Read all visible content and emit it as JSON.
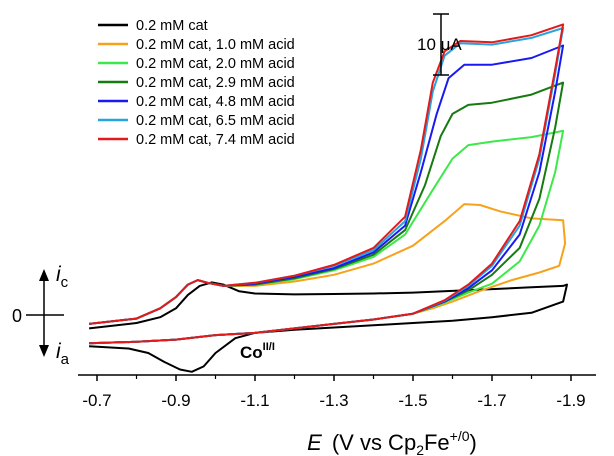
{
  "chart_data": {
    "type": "line",
    "title": "",
    "xlabel_parts": {
      "var": "E",
      "open": "(V vs Cp",
      "sub": "2",
      "mid": "Fe",
      "sup": "+/0",
      "close": ")"
    },
    "x_ticks": [
      "-0.7",
      "-0.9",
      "-1.1",
      "-1.3",
      "-1.5",
      "-1.7",
      "-1.9"
    ],
    "x_tick_values": [
      -0.7,
      -0.9,
      -1.1,
      -1.3,
      -1.5,
      -1.7,
      -1.9
    ],
    "xlim": [
      -0.68,
      -1.9
    ],
    "ylim": [
      -18,
      65
    ],
    "y_zero_label": "0",
    "scale_bar": {
      "value": 10,
      "unit": "μA",
      "label": "10 μA"
    },
    "y_arrows": {
      "upper": "i",
      "upper_sub": "c",
      "lower": "i",
      "lower_sub": "a"
    },
    "annotation": {
      "main": "Co",
      "sup": "II/I"
    },
    "legend_position": "top-left",
    "series": [
      {
        "name": "0.2 mM cat",
        "color": "#000000",
        "forward": [
          [
            -0.68,
            -3
          ],
          [
            -0.8,
            -1.8
          ],
          [
            -0.86,
            -0.5
          ],
          [
            -0.9,
            1.5
          ],
          [
            -0.93,
            4.5
          ],
          [
            -0.96,
            6.5
          ],
          [
            -0.99,
            7.3
          ],
          [
            -1.02,
            6.8
          ],
          [
            -1.06,
            5.3
          ],
          [
            -1.1,
            4.8
          ],
          [
            -1.2,
            4.6
          ],
          [
            -1.3,
            4.7
          ],
          [
            -1.4,
            4.8
          ],
          [
            -1.5,
            5.0
          ],
          [
            -1.6,
            5.4
          ],
          [
            -1.7,
            5.8
          ],
          [
            -1.8,
            6.2
          ],
          [
            -1.88,
            6.5
          ],
          [
            -1.89,
            6.8
          ]
        ],
        "reverse": [
          [
            -1.89,
            6.8
          ],
          [
            -1.88,
            3
          ],
          [
            -1.8,
            0.5
          ],
          [
            -1.7,
            -0.5
          ],
          [
            -1.6,
            -1.3
          ],
          [
            -1.5,
            -1.8
          ],
          [
            -1.4,
            -2.3
          ],
          [
            -1.3,
            -2.8
          ],
          [
            -1.2,
            -3.3
          ],
          [
            -1.1,
            -4.0
          ],
          [
            -1.05,
            -5.2
          ],
          [
            -1.0,
            -8.5
          ],
          [
            -0.97,
            -11.5
          ],
          [
            -0.94,
            -12.7
          ],
          [
            -0.91,
            -12.2
          ],
          [
            -0.87,
            -10.5
          ],
          [
            -0.83,
            -8.5
          ],
          [
            -0.78,
            -7.5
          ],
          [
            -0.68,
            -7.0
          ]
        ]
      },
      {
        "name": "0.2 mM cat, 1.0 mM acid",
        "color": "#f7a21b",
        "forward": [
          [
            -0.68,
            -2
          ],
          [
            -0.8,
            -0.8
          ],
          [
            -0.86,
            1.5
          ],
          [
            -0.9,
            4
          ],
          [
            -0.93,
            6.8
          ],
          [
            -0.955,
            7.8
          ],
          [
            -0.98,
            7.2
          ],
          [
            -1.02,
            6.5
          ],
          [
            -1.1,
            6.5
          ],
          [
            -1.2,
            7.5
          ],
          [
            -1.3,
            9
          ],
          [
            -1.4,
            11.5
          ],
          [
            -1.5,
            15.5
          ],
          [
            -1.58,
            21
          ],
          [
            -1.63,
            24.8
          ],
          [
            -1.67,
            24.6
          ],
          [
            -1.72,
            23.2
          ],
          [
            -1.8,
            21.6
          ],
          [
            -1.88,
            21.2
          ],
          [
            -1.885,
            16
          ]
        ],
        "reverse": [
          [
            -1.885,
            16
          ],
          [
            -1.87,
            11
          ],
          [
            -1.82,
            9.5
          ],
          [
            -1.75,
            7.8
          ],
          [
            -1.67,
            5.4
          ],
          [
            -1.6,
            3
          ],
          [
            -1.55,
            1.5
          ],
          [
            -1.5,
            0.3
          ],
          [
            -1.4,
            -1.0
          ],
          [
            -1.3,
            -2.0
          ],
          [
            -1.2,
            -3.0
          ],
          [
            -1.1,
            -4.0
          ],
          [
            -1.0,
            -4.5
          ],
          [
            -0.9,
            -5.5
          ],
          [
            -0.8,
            -6.0
          ],
          [
            -0.68,
            -6.3
          ]
        ]
      },
      {
        "name": "0.2 mM cat, 2.0 mM acid",
        "color": "#3de84a",
        "forward": [
          [
            -0.68,
            -2
          ],
          [
            -0.8,
            -0.8
          ],
          [
            -0.86,
            1.5
          ],
          [
            -0.9,
            4
          ],
          [
            -0.93,
            6.8
          ],
          [
            -0.955,
            7.8
          ],
          [
            -0.98,
            7.2
          ],
          [
            -1.02,
            6.5
          ],
          [
            -1.1,
            6.8
          ],
          [
            -1.2,
            8
          ],
          [
            -1.3,
            10
          ],
          [
            -1.4,
            13
          ],
          [
            -1.48,
            18
          ],
          [
            -1.55,
            28
          ],
          [
            -1.6,
            35
          ],
          [
            -1.64,
            38
          ],
          [
            -1.7,
            38.8
          ],
          [
            -1.8,
            39.8
          ],
          [
            -1.88,
            41.2
          ]
        ],
        "reverse": [
          [
            -1.88,
            41.2
          ],
          [
            -1.86,
            32
          ],
          [
            -1.82,
            20
          ],
          [
            -1.77,
            12
          ],
          [
            -1.7,
            7
          ],
          [
            -1.64,
            5
          ],
          [
            -1.58,
            2.8
          ],
          [
            -1.5,
            0.3
          ],
          [
            -1.4,
            -1.0
          ],
          [
            -1.3,
            -2.0
          ],
          [
            -1.2,
            -3.0
          ],
          [
            -1.1,
            -4.0
          ],
          [
            -1.0,
            -4.5
          ],
          [
            -0.9,
            -5.5
          ],
          [
            -0.8,
            -6.0
          ],
          [
            -0.68,
            -6.3
          ]
        ]
      },
      {
        "name": "0.2 mM cat, 2.9 mM acid",
        "color": "#157a10",
        "forward": [
          [
            -0.68,
            -2
          ],
          [
            -0.8,
            -0.8
          ],
          [
            -0.86,
            1.5
          ],
          [
            -0.9,
            4
          ],
          [
            -0.93,
            6.8
          ],
          [
            -0.955,
            7.8
          ],
          [
            -0.98,
            7.2
          ],
          [
            -1.02,
            6.5
          ],
          [
            -1.1,
            6.8
          ],
          [
            -1.2,
            8.2
          ],
          [
            -1.3,
            10.3
          ],
          [
            -1.4,
            13.5
          ],
          [
            -1.48,
            19
          ],
          [
            -1.53,
            29
          ],
          [
            -1.57,
            40
          ],
          [
            -1.6,
            45
          ],
          [
            -1.64,
            47
          ],
          [
            -1.7,
            47.5
          ],
          [
            -1.8,
            49.3
          ],
          [
            -1.88,
            52
          ]
        ],
        "reverse": [
          [
            -1.88,
            52
          ],
          [
            -1.86,
            42
          ],
          [
            -1.82,
            26
          ],
          [
            -1.77,
            15
          ],
          [
            -1.7,
            9
          ],
          [
            -1.64,
            5.5
          ],
          [
            -1.58,
            3
          ],
          [
            -1.5,
            0.3
          ],
          [
            -1.4,
            -1.0
          ],
          [
            -1.3,
            -2.0
          ],
          [
            -1.2,
            -3.0
          ],
          [
            -1.1,
            -4.0
          ],
          [
            -1.0,
            -4.5
          ],
          [
            -0.9,
            -5.5
          ],
          [
            -0.8,
            -6.0
          ],
          [
            -0.68,
            -6.3
          ]
        ]
      },
      {
        "name": "0.2 mM cat, 4.8 mM acid",
        "color": "#1a1af0",
        "forward": [
          [
            -0.68,
            -2
          ],
          [
            -0.8,
            -0.8
          ],
          [
            -0.86,
            1.5
          ],
          [
            -0.9,
            4
          ],
          [
            -0.93,
            6.8
          ],
          [
            -0.955,
            7.8
          ],
          [
            -0.98,
            7.2
          ],
          [
            -1.02,
            6.5
          ],
          [
            -1.1,
            7
          ],
          [
            -1.2,
            8.5
          ],
          [
            -1.3,
            10.5
          ],
          [
            -1.4,
            14
          ],
          [
            -1.48,
            20
          ],
          [
            -1.52,
            32
          ],
          [
            -1.56,
            45
          ],
          [
            -1.59,
            53
          ],
          [
            -1.63,
            56
          ],
          [
            -1.7,
            56
          ],
          [
            -1.8,
            57.5
          ],
          [
            -1.88,
            60.3
          ]
        ],
        "reverse": [
          [
            -1.88,
            60.3
          ],
          [
            -1.86,
            50
          ],
          [
            -1.82,
            32
          ],
          [
            -1.77,
            18
          ],
          [
            -1.7,
            10
          ],
          [
            -1.64,
            6
          ],
          [
            -1.58,
            3
          ],
          [
            -1.5,
            0.3
          ],
          [
            -1.4,
            -1.0
          ],
          [
            -1.3,
            -2.0
          ],
          [
            -1.2,
            -3.0
          ],
          [
            -1.1,
            -4.0
          ],
          [
            -1.0,
            -4.5
          ],
          [
            -0.9,
            -5.5
          ],
          [
            -0.8,
            -6.0
          ],
          [
            -0.68,
            -6.3
          ]
        ]
      },
      {
        "name": "0.2 mM cat, 6.5 mM acid",
        "color": "#27a3e0",
        "forward": [
          [
            -0.68,
            -2
          ],
          [
            -0.8,
            -0.8
          ],
          [
            -0.86,
            1.5
          ],
          [
            -0.9,
            4
          ],
          [
            -0.93,
            6.8
          ],
          [
            -0.955,
            7.8
          ],
          [
            -0.98,
            7.2
          ],
          [
            -1.02,
            6.5
          ],
          [
            -1.1,
            7.2
          ],
          [
            -1.2,
            8.8
          ],
          [
            -1.3,
            11
          ],
          [
            -1.4,
            14.5
          ],
          [
            -1.48,
            21
          ],
          [
            -1.52,
            35
          ],
          [
            -1.55,
            50
          ],
          [
            -1.58,
            58
          ],
          [
            -1.62,
            60.8
          ],
          [
            -1.7,
            60.5
          ],
          [
            -1.8,
            62
          ],
          [
            -1.88,
            64.2
          ]
        ],
        "reverse": [
          [
            -1.88,
            64.2
          ],
          [
            -1.86,
            54
          ],
          [
            -1.82,
            35
          ],
          [
            -1.77,
            20
          ],
          [
            -1.7,
            11
          ],
          [
            -1.64,
            6.5
          ],
          [
            -1.58,
            3.2
          ],
          [
            -1.5,
            0.3
          ],
          [
            -1.4,
            -1.0
          ],
          [
            -1.3,
            -2.0
          ],
          [
            -1.2,
            -3.0
          ],
          [
            -1.1,
            -4.0
          ],
          [
            -1.0,
            -4.5
          ],
          [
            -0.9,
            -5.5
          ],
          [
            -0.8,
            -6.0
          ],
          [
            -0.68,
            -6.3
          ]
        ]
      },
      {
        "name": "0.2 mM cat, 7.4 mM acid",
        "color": "#e31a1a",
        "forward": [
          [
            -0.68,
            -2
          ],
          [
            -0.8,
            -0.8
          ],
          [
            -0.86,
            1.5
          ],
          [
            -0.9,
            4
          ],
          [
            -0.93,
            6.8
          ],
          [
            -0.955,
            7.8
          ],
          [
            -0.98,
            7.2
          ],
          [
            -1.02,
            6.5
          ],
          [
            -1.1,
            7.2
          ],
          [
            -1.2,
            8.8
          ],
          [
            -1.3,
            11.2
          ],
          [
            -1.4,
            15
          ],
          [
            -1.48,
            22
          ],
          [
            -1.52,
            37
          ],
          [
            -1.55,
            52
          ],
          [
            -1.58,
            59
          ],
          [
            -1.62,
            61.3
          ],
          [
            -1.7,
            61
          ],
          [
            -1.8,
            62.6
          ],
          [
            -1.88,
            65
          ]
        ],
        "reverse": [
          [
            -1.88,
            65
          ],
          [
            -1.86,
            55
          ],
          [
            -1.82,
            36
          ],
          [
            -1.77,
            21
          ],
          [
            -1.7,
            11.5
          ],
          [
            -1.64,
            6.8
          ],
          [
            -1.58,
            3.3
          ],
          [
            -1.5,
            0.3
          ],
          [
            -1.4,
            -1.0
          ],
          [
            -1.3,
            -2.0
          ],
          [
            -1.2,
            -3.0
          ],
          [
            -1.1,
            -4.0
          ],
          [
            -1.0,
            -4.5
          ],
          [
            -0.9,
            -5.5
          ],
          [
            -0.8,
            -6.0
          ],
          [
            -0.68,
            -6.3
          ]
        ]
      }
    ]
  }
}
